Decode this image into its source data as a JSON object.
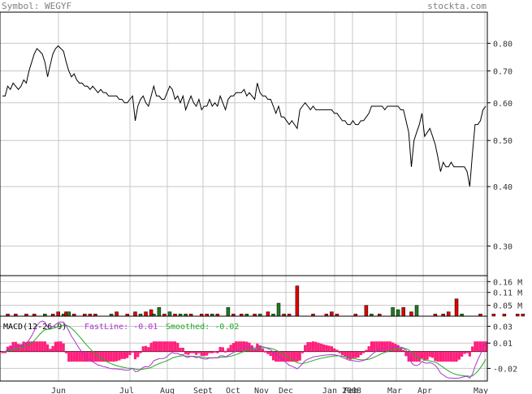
{
  "header": {
    "symbol": "Symbol: WEGYF",
    "site": "stockta.com"
  },
  "colors": {
    "price_line": "#000000",
    "grid": "#c8c8c8",
    "border": "#000000",
    "volume_up": "#1f7a1f",
    "volume_down": "#e00000",
    "macd_fast": "#aa33cc",
    "macd_smoothed": "#22aa22",
    "macd_hist": "#ff1f7a"
  },
  "chart_data": [
    {
      "type": "line",
      "panel": "price",
      "y_scale": "log",
      "ylim": [
        0.26,
        0.93
      ],
      "y_ticks": [
        "0.80",
        "0.70",
        "0.60",
        "0.50",
        "0.40",
        "0.30"
      ],
      "x_labels": [
        "Jun",
        "Jul",
        "Aug",
        "Sept",
        "Oct",
        "Nov",
        "Dec",
        "Jan 2008",
        "Feb",
        "Mar",
        "Apr",
        "May"
      ],
      "values": [
        0.62,
        0.62,
        0.65,
        0.64,
        0.66,
        0.65,
        0.64,
        0.65,
        0.67,
        0.66,
        0.7,
        0.73,
        0.76,
        0.78,
        0.77,
        0.76,
        0.73,
        0.68,
        0.72,
        0.76,
        0.78,
        0.79,
        0.78,
        0.77,
        0.73,
        0.7,
        0.68,
        0.69,
        0.67,
        0.66,
        0.66,
        0.65,
        0.65,
        0.64,
        0.65,
        0.64,
        0.63,
        0.64,
        0.63,
        0.63,
        0.62,
        0.62,
        0.62,
        0.62,
        0.61,
        0.61,
        0.6,
        0.6,
        0.61,
        0.62,
        0.55,
        0.59,
        0.61,
        0.62,
        0.6,
        0.59,
        0.62,
        0.65,
        0.62,
        0.62,
        0.61,
        0.61,
        0.63,
        0.65,
        0.64,
        0.61,
        0.62,
        0.6,
        0.62,
        0.58,
        0.6,
        0.62,
        0.6,
        0.59,
        0.61,
        0.58,
        0.59,
        0.59,
        0.61,
        0.59,
        0.6,
        0.59,
        0.62,
        0.6,
        0.58,
        0.61,
        0.62,
        0.62,
        0.63,
        0.63,
        0.63,
        0.64,
        0.62,
        0.63,
        0.62,
        0.61,
        0.66,
        0.63,
        0.62,
        0.62,
        0.61,
        0.61,
        0.59,
        0.57,
        0.59,
        0.56,
        0.56,
        0.55,
        0.54,
        0.55,
        0.54,
        0.53,
        0.58,
        0.59,
        0.6,
        0.59,
        0.58,
        0.59,
        0.58,
        0.58,
        0.58,
        0.58,
        0.58,
        0.58,
        0.58,
        0.57,
        0.57,
        0.56,
        0.55,
        0.55,
        0.54,
        0.54,
        0.55,
        0.54,
        0.54,
        0.55,
        0.55,
        0.56,
        0.57,
        0.59,
        0.59,
        0.59,
        0.59,
        0.59,
        0.58,
        0.59,
        0.59,
        0.59,
        0.59,
        0.59,
        0.58,
        0.58,
        0.55,
        0.52,
        0.44,
        0.5,
        0.52,
        0.54,
        0.57,
        0.51,
        0.52,
        0.53,
        0.51,
        0.49,
        0.46,
        0.43,
        0.45,
        0.44,
        0.44,
        0.45,
        0.44,
        0.44,
        0.44,
        0.44,
        0.44,
        0.43,
        0.4,
        0.47,
        0.54,
        0.54,
        0.55,
        0.58,
        0.59
      ]
    },
    {
      "type": "bar",
      "panel": "volume",
      "y_ticks": [
        "0.16 M",
        "0.11 M",
        "0.05 M"
      ],
      "ylim": [
        0,
        0.18
      ],
      "bars": [
        [
          2,
          0.01,
          "d"
        ],
        [
          5,
          0.01,
          "d"
        ],
        [
          9,
          0.01,
          "d"
        ],
        [
          12,
          0.01,
          "d"
        ],
        [
          16,
          0.01,
          "u"
        ],
        [
          19,
          0.01,
          "d"
        ],
        [
          21,
          0.02,
          "d"
        ],
        [
          23,
          0.01,
          "u"
        ],
        [
          24,
          0.02,
          "d"
        ],
        [
          25,
          0.02,
          "u"
        ],
        [
          27,
          0.01,
          "d"
        ],
        [
          31,
          0.01,
          "d"
        ],
        [
          33,
          0.01,
          "d"
        ],
        [
          35,
          0.01,
          "d"
        ],
        [
          41,
          0.01,
          "u"
        ],
        [
          43,
          0.02,
          "d"
        ],
        [
          47,
          0.01,
          "d"
        ],
        [
          50,
          0.02,
          "d"
        ],
        [
          52,
          0.01,
          "u"
        ],
        [
          54,
          0.02,
          "d"
        ],
        [
          56,
          0.03,
          "d"
        ],
        [
          57,
          0.01,
          "u"
        ],
        [
          59,
          0.04,
          "u"
        ],
        [
          61,
          0.01,
          "d"
        ],
        [
          63,
          0.02,
          "u"
        ],
        [
          65,
          0.01,
          "d"
        ],
        [
          67,
          0.01,
          "u"
        ],
        [
          69,
          0.01,
          "u"
        ],
        [
          71,
          0.01,
          "d"
        ],
        [
          75,
          0.01,
          "d"
        ],
        [
          77,
          0.01,
          "d"
        ],
        [
          79,
          0.01,
          "u"
        ],
        [
          81,
          0.01,
          "d"
        ],
        [
          85,
          0.04,
          "u"
        ],
        [
          87,
          0.01,
          "d"
        ],
        [
          90,
          0.01,
          "d"
        ],
        [
          92,
          0.01,
          "u"
        ],
        [
          95,
          0.01,
          "d"
        ],
        [
          97,
          0.01,
          "u"
        ],
        [
          100,
          0.02,
          "d"
        ],
        [
          102,
          0.01,
          "u"
        ],
        [
          104,
          0.06,
          "u"
        ],
        [
          106,
          0.01,
          "d"
        ],
        [
          108,
          0.01,
          "d"
        ],
        [
          111,
          0.14,
          "d"
        ],
        [
          117,
          0.01,
          "d"
        ],
        [
          122,
          0.01,
          "d"
        ],
        [
          124,
          0.02,
          "d"
        ],
        [
          126,
          0.01,
          "d"
        ],
        [
          133,
          0.01,
          "d"
        ],
        [
          137,
          0.05,
          "d"
        ],
        [
          139,
          0.01,
          "u"
        ],
        [
          142,
          0.01,
          "d"
        ],
        [
          147,
          0.04,
          "u"
        ],
        [
          149,
          0.03,
          "u"
        ],
        [
          151,
          0.04,
          "d"
        ],
        [
          154,
          0.02,
          "d"
        ],
        [
          156,
          0.05,
          "u"
        ],
        [
          163,
          0.01,
          "d"
        ],
        [
          166,
          0.01,
          "d"
        ],
        [
          168,
          0.02,
          "d"
        ],
        [
          171,
          0.08,
          "d"
        ],
        [
          173,
          0.01,
          "u"
        ],
        [
          180,
          0.01,
          "d"
        ],
        [
          185,
          0.01,
          "d"
        ],
        [
          189,
          0.01,
          "d"
        ],
        [
          194,
          0.01,
          "d"
        ],
        [
          196,
          0.01,
          "d"
        ]
      ]
    },
    {
      "type": "bar",
      "panel": "macd",
      "title": "MACD(12-26-9)",
      "fast_label": "FastLine: -0.01",
      "smoothed_label": "Smoothed: -0.02",
      "y_ticks": [
        "0.03",
        "0.01",
        "-0.02"
      ],
      "ylim": [
        -0.035,
        0.042
      ]
    }
  ]
}
